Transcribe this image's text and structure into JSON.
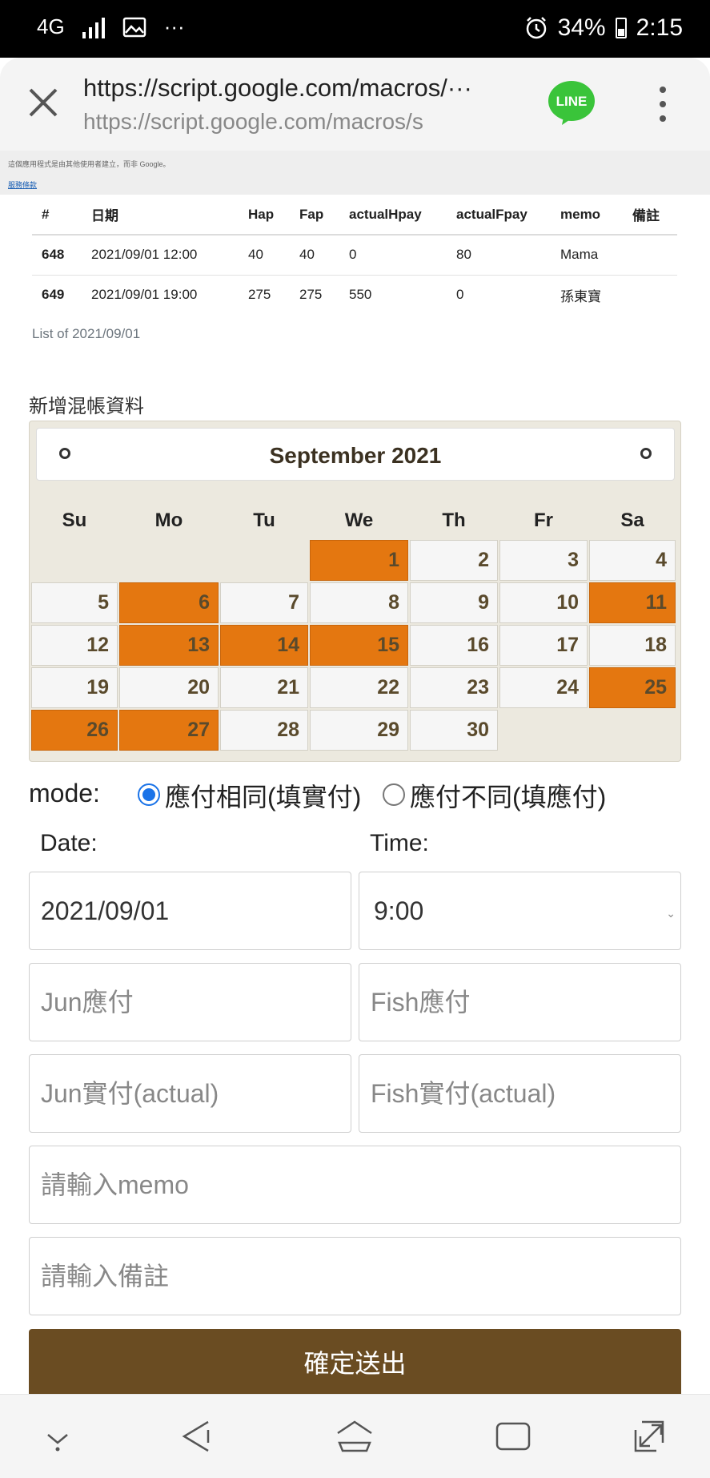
{
  "status_bar": {
    "network": "4G",
    "dots": "···",
    "battery": "34%",
    "time": "2:15"
  },
  "browser": {
    "url_full": "https://script.google.com/macros/···",
    "url_short": "https://script.google.com/macros/s",
    "logo_text": "LINE"
  },
  "notice": {
    "text": "這個應用程式是由其他使用者建立，而非 Google。",
    "link": "服務條款"
  },
  "table": {
    "headers": [
      "#",
      "日期",
      "Hap",
      "Fap",
      "actualHpay",
      "actualFpay",
      "memo",
      "備註"
    ],
    "rows": [
      [
        "648",
        "2021/09/01 12:00",
        "40",
        "40",
        "0",
        "80",
        "Mama",
        ""
      ],
      [
        "649",
        "2021/09/01 19:00",
        "275",
        "275",
        "550",
        "0",
        "孫東寶",
        ""
      ]
    ],
    "caption": "List of 2021/09/01"
  },
  "form": {
    "title": "新增混帳資料",
    "calendar": {
      "month_title": "September 2021",
      "weekdays": [
        "Su",
        "Mo",
        "Tu",
        "We",
        "Th",
        "Fr",
        "Sa"
      ],
      "first_weekday": 3,
      "days_in_month": 30,
      "highlighted_days": [
        1,
        6,
        11,
        13,
        14,
        15,
        25,
        26,
        27
      ],
      "highlight_color": "#e47710"
    },
    "mode_label": "mode:",
    "mode_options": [
      "應付相同(填實付)",
      "應付不同(填應付)"
    ],
    "mode_selected": 0,
    "date_label": "Date:",
    "time_label": "Time:",
    "date_value": "2021/09/01",
    "time_value": "9:00",
    "jun_due_placeholder": "Jun應付",
    "fish_due_placeholder": "Fish應付",
    "jun_actual_placeholder": "Jun實付(actual)",
    "fish_actual_placeholder": "Fish實付(actual)",
    "memo_placeholder": "請輸入memo",
    "note_placeholder": "請輸入備註",
    "submit_label": "確定送出"
  }
}
